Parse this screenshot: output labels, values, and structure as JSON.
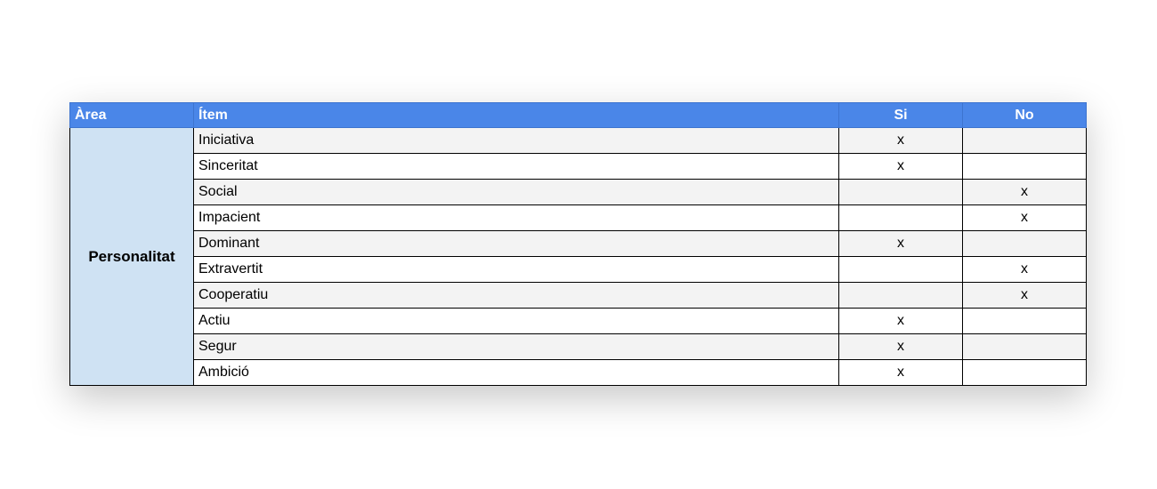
{
  "headers": {
    "area": "Àrea",
    "item": "Ítem",
    "si": "Si",
    "no": "No"
  },
  "area": "Personalitat",
  "rows": [
    {
      "item": "Iniciativa",
      "si": "x",
      "no": ""
    },
    {
      "item": "Sinceritat",
      "si": "x",
      "no": ""
    },
    {
      "item": "Social",
      "si": "",
      "no": "x"
    },
    {
      "item": "Impacient",
      "si": "",
      "no": "x"
    },
    {
      "item": "Dominant",
      "si": "x",
      "no": ""
    },
    {
      "item": "Extravertit",
      "si": "",
      "no": "x"
    },
    {
      "item": "Cooperatiu",
      "si": "",
      "no": "x"
    },
    {
      "item": "Actiu",
      "si": "x",
      "no": ""
    },
    {
      "item": "Segur",
      "si": "x",
      "no": ""
    },
    {
      "item": "Ambició",
      "si": "x",
      "no": ""
    }
  ],
  "colors": {
    "header": "#4a86e8",
    "area": "#cfe2f3",
    "stripe": "#f3f3f3"
  }
}
